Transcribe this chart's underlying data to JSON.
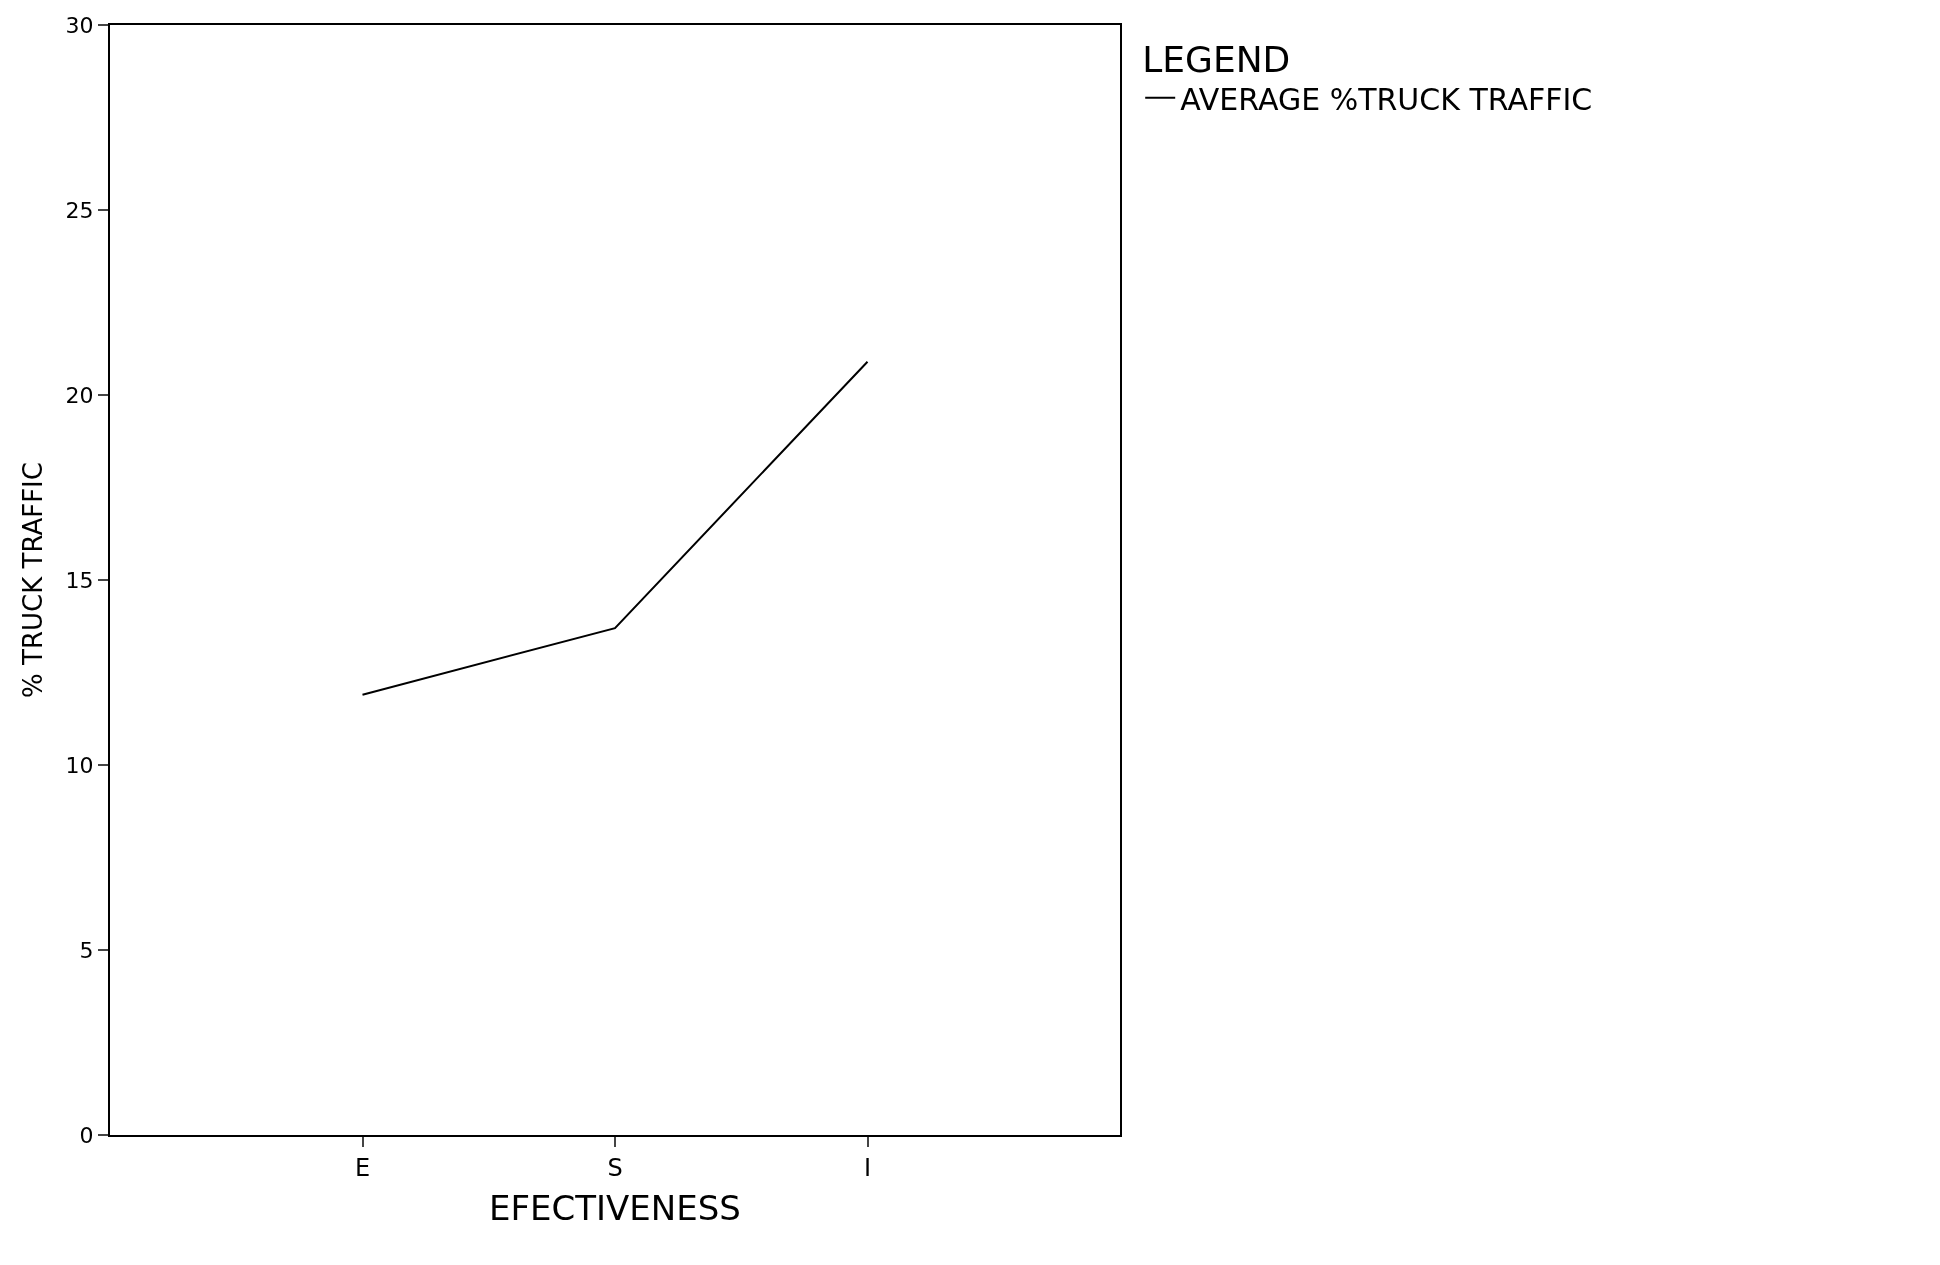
{
  "chart_data": {
    "type": "line",
    "xlabel": "EFECTIVENESS",
    "ylabel": "% TRUCK TRAFFIC",
    "legend_title": "LEGEND",
    "categories": [
      "E",
      "S",
      "I"
    ],
    "series": [
      {
        "name": "AVERAGE %TRUCK TRAFFIC",
        "color": "#000000",
        "values": [
          11.9,
          13.7,
          20.9
        ]
      }
    ],
    "ylim": [
      0,
      30
    ],
    "yticks": [
      0,
      5,
      10,
      15,
      20,
      25,
      30
    ],
    "legend": "top right",
    "marker": "none",
    "line_style": "solid"
  }
}
